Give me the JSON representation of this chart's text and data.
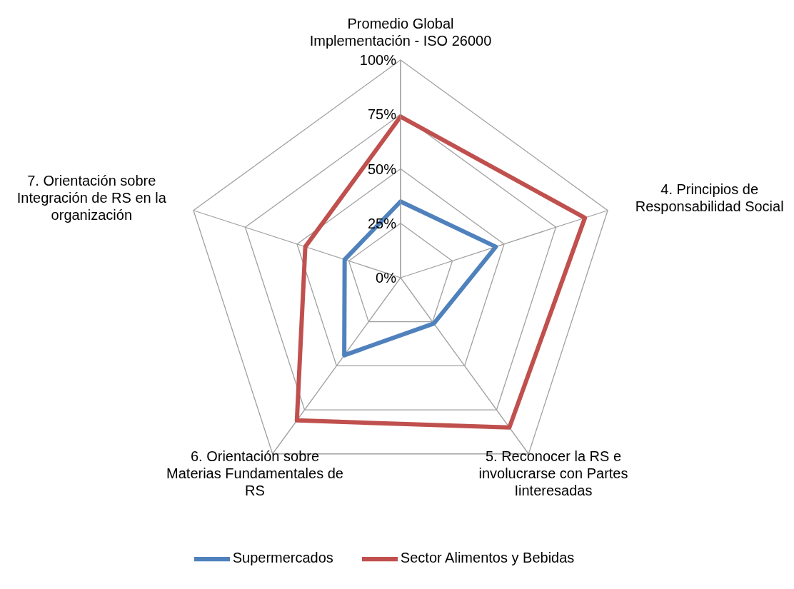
{
  "chart_data": {
    "type": "radar",
    "categories": [
      "Promedio Global Implementación - ISO 26000",
      "4. Principios de Responsabilidad Social",
      "5. Reconocer la RS e involucrarse con Partes Iinteresadas",
      "6. Orientación sobre Materias Fundamentales de RS",
      "7. Orientación sobre Integración de RS en la organización"
    ],
    "series": [
      {
        "name": "Supermercados",
        "color": "#4f81bd",
        "values": [
          35,
          46,
          26,
          44,
          27
        ]
      },
      {
        "name": "Sector Alimentos y Bebidas",
        "color": "#c0504d",
        "values": [
          74,
          89,
          85,
          81,
          46
        ]
      }
    ],
    "ylim": [
      0,
      100
    ],
    "yticks": [
      {
        "value": 0,
        "label": "0%"
      },
      {
        "value": 25,
        "label": "25%"
      },
      {
        "value": 50,
        "label": "50%"
      },
      {
        "value": 75,
        "label": "75%"
      },
      {
        "value": 100,
        "label": "100%"
      }
    ],
    "grid": true,
    "legend": "bottom",
    "marker": "none",
    "line_style": "solid"
  }
}
